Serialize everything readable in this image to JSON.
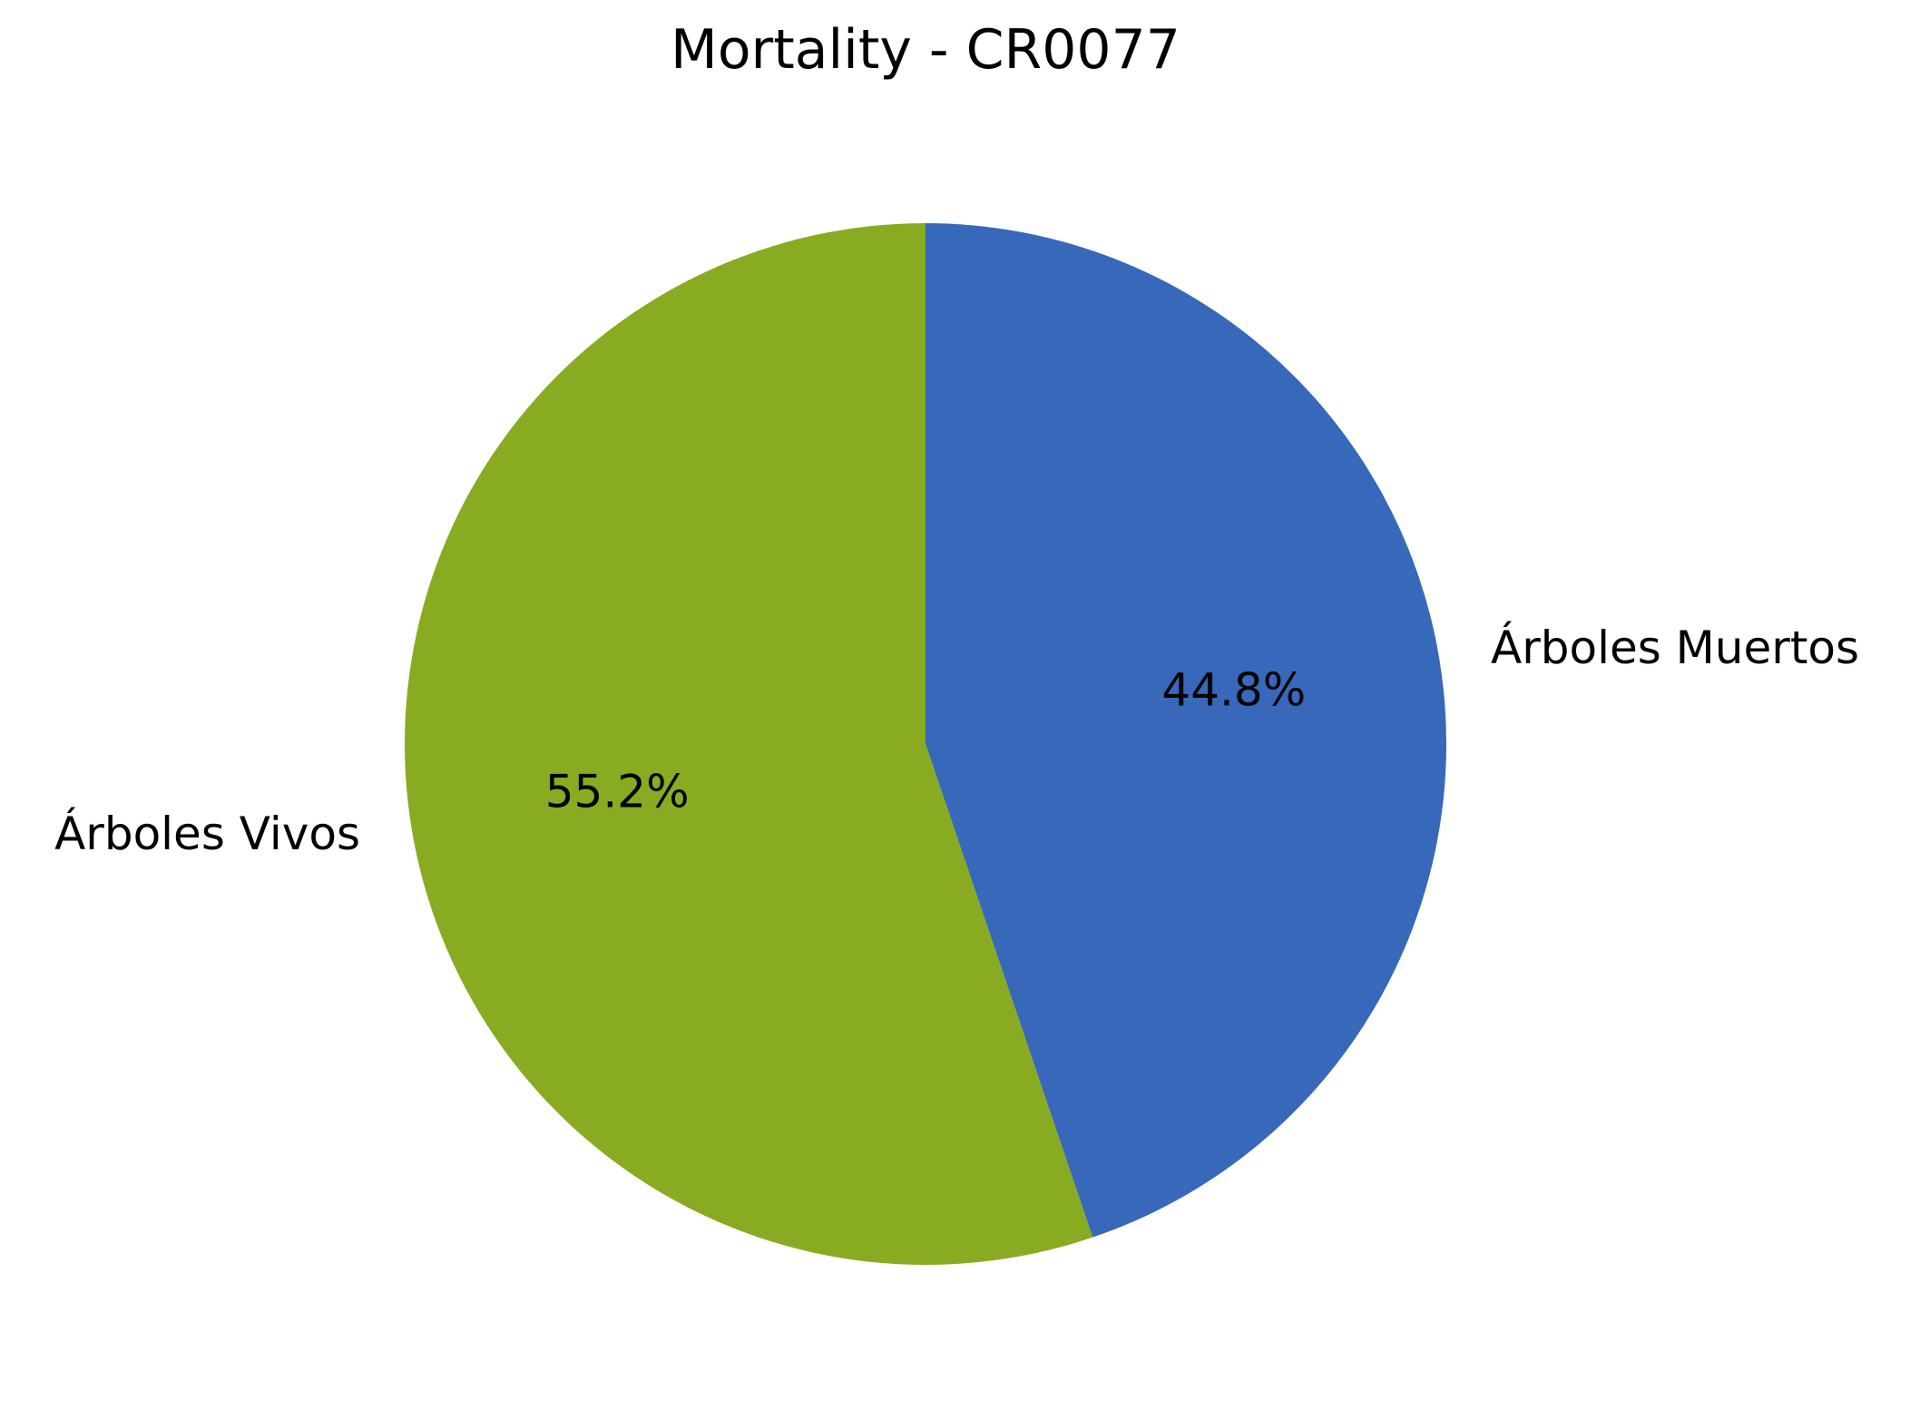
{
  "chart_data": {
    "type": "pie",
    "title": "Mortality - CR0077",
    "start_angle": "top",
    "direction": "clockwise",
    "slices": [
      {
        "label": "Árboles Muertos",
        "value": 44.8,
        "pct_label": "44.8%",
        "color": "#3768b9"
      },
      {
        "label": "Árboles Vivos",
        "value": 55.2,
        "pct_label": "55.2%",
        "color": "#89ab22"
      }
    ]
  }
}
